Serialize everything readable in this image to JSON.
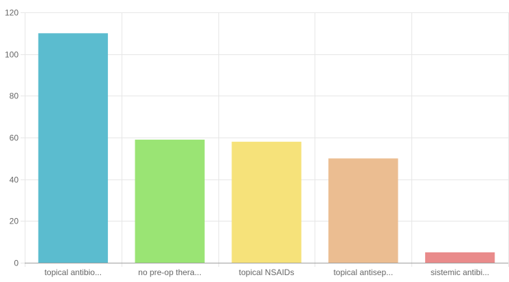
{
  "chart_data": {
    "type": "bar",
    "title": "",
    "xlabel": "",
    "ylabel": "",
    "categories": [
      "topical antibio...",
      "no pre-op thera...",
      "topical NSAIDs",
      "topical antisep...",
      "sistemic antibi..."
    ],
    "values": [
      110,
      59,
      58,
      50,
      5
    ],
    "colors": [
      "#5bbccf",
      "#9ae474",
      "#f6e27a",
      "#ebbd91",
      "#e98b8b"
    ],
    "ylim": [
      0,
      120
    ],
    "yticks": [
      0,
      20,
      40,
      60,
      80,
      100,
      120
    ],
    "grid": true,
    "legend": "none"
  }
}
